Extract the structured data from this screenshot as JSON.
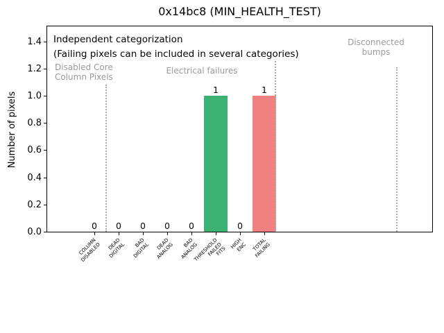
{
  "chart_data": {
    "type": "bar",
    "title": "0x14bc8 (MIN_HEALTH_TEST)",
    "xlabel": "",
    "ylabel": "Number of pixels",
    "ylim": [
      0,
      1.5
    ],
    "grid": false,
    "yticks": [
      0.0,
      0.2,
      0.4,
      0.6,
      0.8,
      1.0,
      1.2,
      1.4
    ],
    "yticklabels": [
      "0.0",
      "0.2",
      "0.4",
      "0.6",
      "0.8",
      "1.0",
      "1.2",
      "1.4"
    ],
    "categories": [
      "COLUMN\nDISABLED",
      "DEAD\nDIGITAL",
      "BAD\nDIGITAL",
      "DEAD\nANALOG",
      "BAD\nANALOG",
      "THRESHOLD\nFAILED\nFITS",
      "HIGH\nENC",
      "TOTAL\nFAILING"
    ],
    "values": [
      0,
      0,
      0,
      0,
      0,
      1,
      0,
      1
    ],
    "value_labels": [
      "0",
      "0",
      "0",
      "0",
      "0",
      "1",
      "0",
      "1"
    ],
    "bar_colors": [
      null,
      null,
      null,
      null,
      null,
      "#3bb273",
      null,
      "#f18080"
    ],
    "annotations": {
      "note": "Independent categorization\n(Failing pixels can be included in several categories)",
      "group_left": "Disabled Core\nColumn Pixels",
      "group_mid": "Electrical failures",
      "group_right": "Disconnected\nbumps"
    },
    "separators": {
      "style": "dotted",
      "color": "#ababab",
      "ymax": 1.2,
      "positions_between_categories": [
        0.5,
        7.5,
        12.5
      ]
    },
    "colors": {
      "bar_green": "#3bb273",
      "bar_red": "#f18080",
      "annotation_gray": "#9a9a9a",
      "axis": "#000000",
      "background": "#ffffff"
    }
  }
}
